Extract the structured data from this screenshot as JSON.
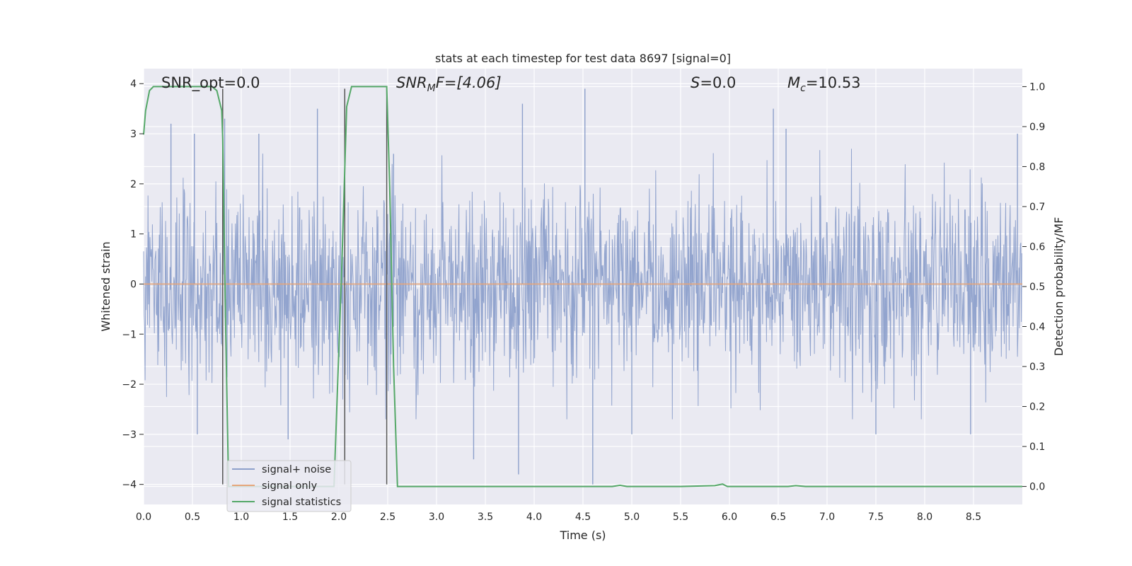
{
  "chart_data": {
    "type": "line",
    "title": "stats at each timestep for test data 8697 [signal=0]",
    "xlabel": "Time (s)",
    "ylabel": "Whitened strain",
    "ylabel_right": "Detection probability/MF",
    "xlim": [
      0.0,
      9.0
    ],
    "ylim": [
      -4.4,
      4.3
    ],
    "ylim_right": [
      -0.045,
      1.045
    ],
    "x_ticks": [
      0.0,
      0.5,
      1.0,
      1.5,
      2.0,
      2.5,
      3.0,
      3.5,
      4.0,
      4.5,
      5.0,
      5.5,
      6.0,
      6.5,
      7.0,
      7.5,
      8.0,
      8.5
    ],
    "x_tick_labels": [
      "0.0",
      "0.5",
      "1.0",
      "1.5",
      "2.0",
      "2.5",
      "3.0",
      "3.5",
      "4.0",
      "4.5",
      "5.0",
      "5.5",
      "6.0",
      "6.5",
      "7.0",
      "7.5",
      "8.0",
      "8.5"
    ],
    "y_ticks": [
      -4,
      -3,
      -2,
      -1,
      0,
      1,
      2,
      3,
      4
    ],
    "y_tick_labels": [
      "−4",
      "−3",
      "−2",
      "−1",
      "0",
      "1",
      "2",
      "3",
      "4"
    ],
    "y_ticks_right": [
      0.0,
      0.1,
      0.2,
      0.3,
      0.4,
      0.5,
      0.6,
      0.7,
      0.8,
      0.9,
      1.0
    ],
    "y_tick_labels_right": [
      "0.0",
      "0.1",
      "0.2",
      "0.3",
      "0.4",
      "0.5",
      "0.6",
      "0.7",
      "0.8",
      "0.9",
      "1.0"
    ],
    "grid": true,
    "annotations": {
      "snr_opt": "SNR_opt=0.0",
      "snr_mf_main": "SNR",
      "snr_mf_sub": "M",
      "snr_mf_rest": "F=[4.06]",
      "s_main": "S",
      "s_rest": "=0.0",
      "mc_main": "M",
      "mc_sub": "c",
      "mc_rest": "=10.53"
    },
    "vertical_lines": [
      {
        "x": 0.81,
        "y0": -4.0,
        "y1": 3.9
      },
      {
        "x": 2.06,
        "y0": -4.0,
        "y1": 3.9
      },
      {
        "x": 2.49,
        "y0": -4.0,
        "y1": 3.9
      }
    ],
    "series": [
      {
        "name": "signal+ noise",
        "axis": "left",
        "color": "#8da0cb",
        "description_values": "noise around 0 with amplitude mostly within ±2.5",
        "spikes": [
          {
            "x": 0.28,
            "y": 3.2
          },
          {
            "x": 0.52,
            "y": 3.0
          },
          {
            "x": 0.83,
            "y": 3.3
          },
          {
            "x": 1.18,
            "y": 3.0
          },
          {
            "x": 1.78,
            "y": 3.5
          },
          {
            "x": 2.56,
            "y": 2.6
          },
          {
            "x": 3.88,
            "y": 3.6
          },
          {
            "x": 4.52,
            "y": 3.9
          },
          {
            "x": 6.45,
            "y": 3.5
          },
          {
            "x": 6.58,
            "y": 3.1
          },
          {
            "x": 8.95,
            "y": 3.0
          },
          {
            "x": 3.38,
            "y": -3.5
          },
          {
            "x": 3.84,
            "y": -3.8
          },
          {
            "x": 4.6,
            "y": -4.0
          },
          {
            "x": 5.0,
            "y": -3.0
          },
          {
            "x": 1.48,
            "y": -3.1
          },
          {
            "x": 0.55,
            "y": -3.0
          },
          {
            "x": 7.5,
            "y": -3.0
          },
          {
            "x": 8.47,
            "y": -3.0
          }
        ]
      },
      {
        "name": "signal only",
        "axis": "left",
        "color": "#e5a57a",
        "x": [
          0.0,
          9.0
        ],
        "y": [
          0.0,
          0.0
        ]
      },
      {
        "name": "signal statistics",
        "axis": "right",
        "color": "#55a868",
        "x": [
          0.0,
          0.02,
          0.06,
          0.1,
          0.15,
          0.2,
          0.3,
          0.4,
          0.5,
          0.6,
          0.7,
          0.75,
          0.8,
          0.81,
          0.84,
          0.87,
          0.9,
          1.0,
          1.5,
          1.95,
          2.03,
          2.08,
          2.13,
          2.2,
          2.3,
          2.4,
          2.49,
          2.52,
          2.56,
          2.6,
          3.0,
          3.5,
          4.0,
          4.5,
          4.8,
          4.88,
          4.95,
          5.0,
          5.5,
          5.85,
          5.93,
          5.98,
          6.1,
          6.6,
          6.68,
          6.78,
          7.0,
          7.5,
          8.0,
          8.5,
          9.0
        ],
        "y": [
          0.88,
          0.94,
          0.99,
          1.0,
          1.0,
          1.0,
          1.0,
          1.0,
          1.0,
          1.0,
          1.0,
          0.99,
          0.94,
          0.87,
          0.4,
          0.0,
          0.0,
          0.0,
          0.0,
          0.0,
          0.55,
          0.95,
          1.0,
          1.0,
          1.0,
          1.0,
          1.0,
          0.75,
          0.3,
          0.0,
          0.0,
          0.0,
          0.0,
          0.0,
          0.0,
          0.003,
          0.0,
          0.0,
          0.0,
          0.002,
          0.006,
          0.0,
          0.0,
          0.0,
          0.002,
          0.0,
          0.0,
          0.0,
          0.0,
          0.0,
          0.0
        ]
      }
    ],
    "legend": {
      "placement": "lower-left",
      "entries": [
        "signal+ noise",
        "signal only",
        "signal statistics"
      ]
    }
  }
}
